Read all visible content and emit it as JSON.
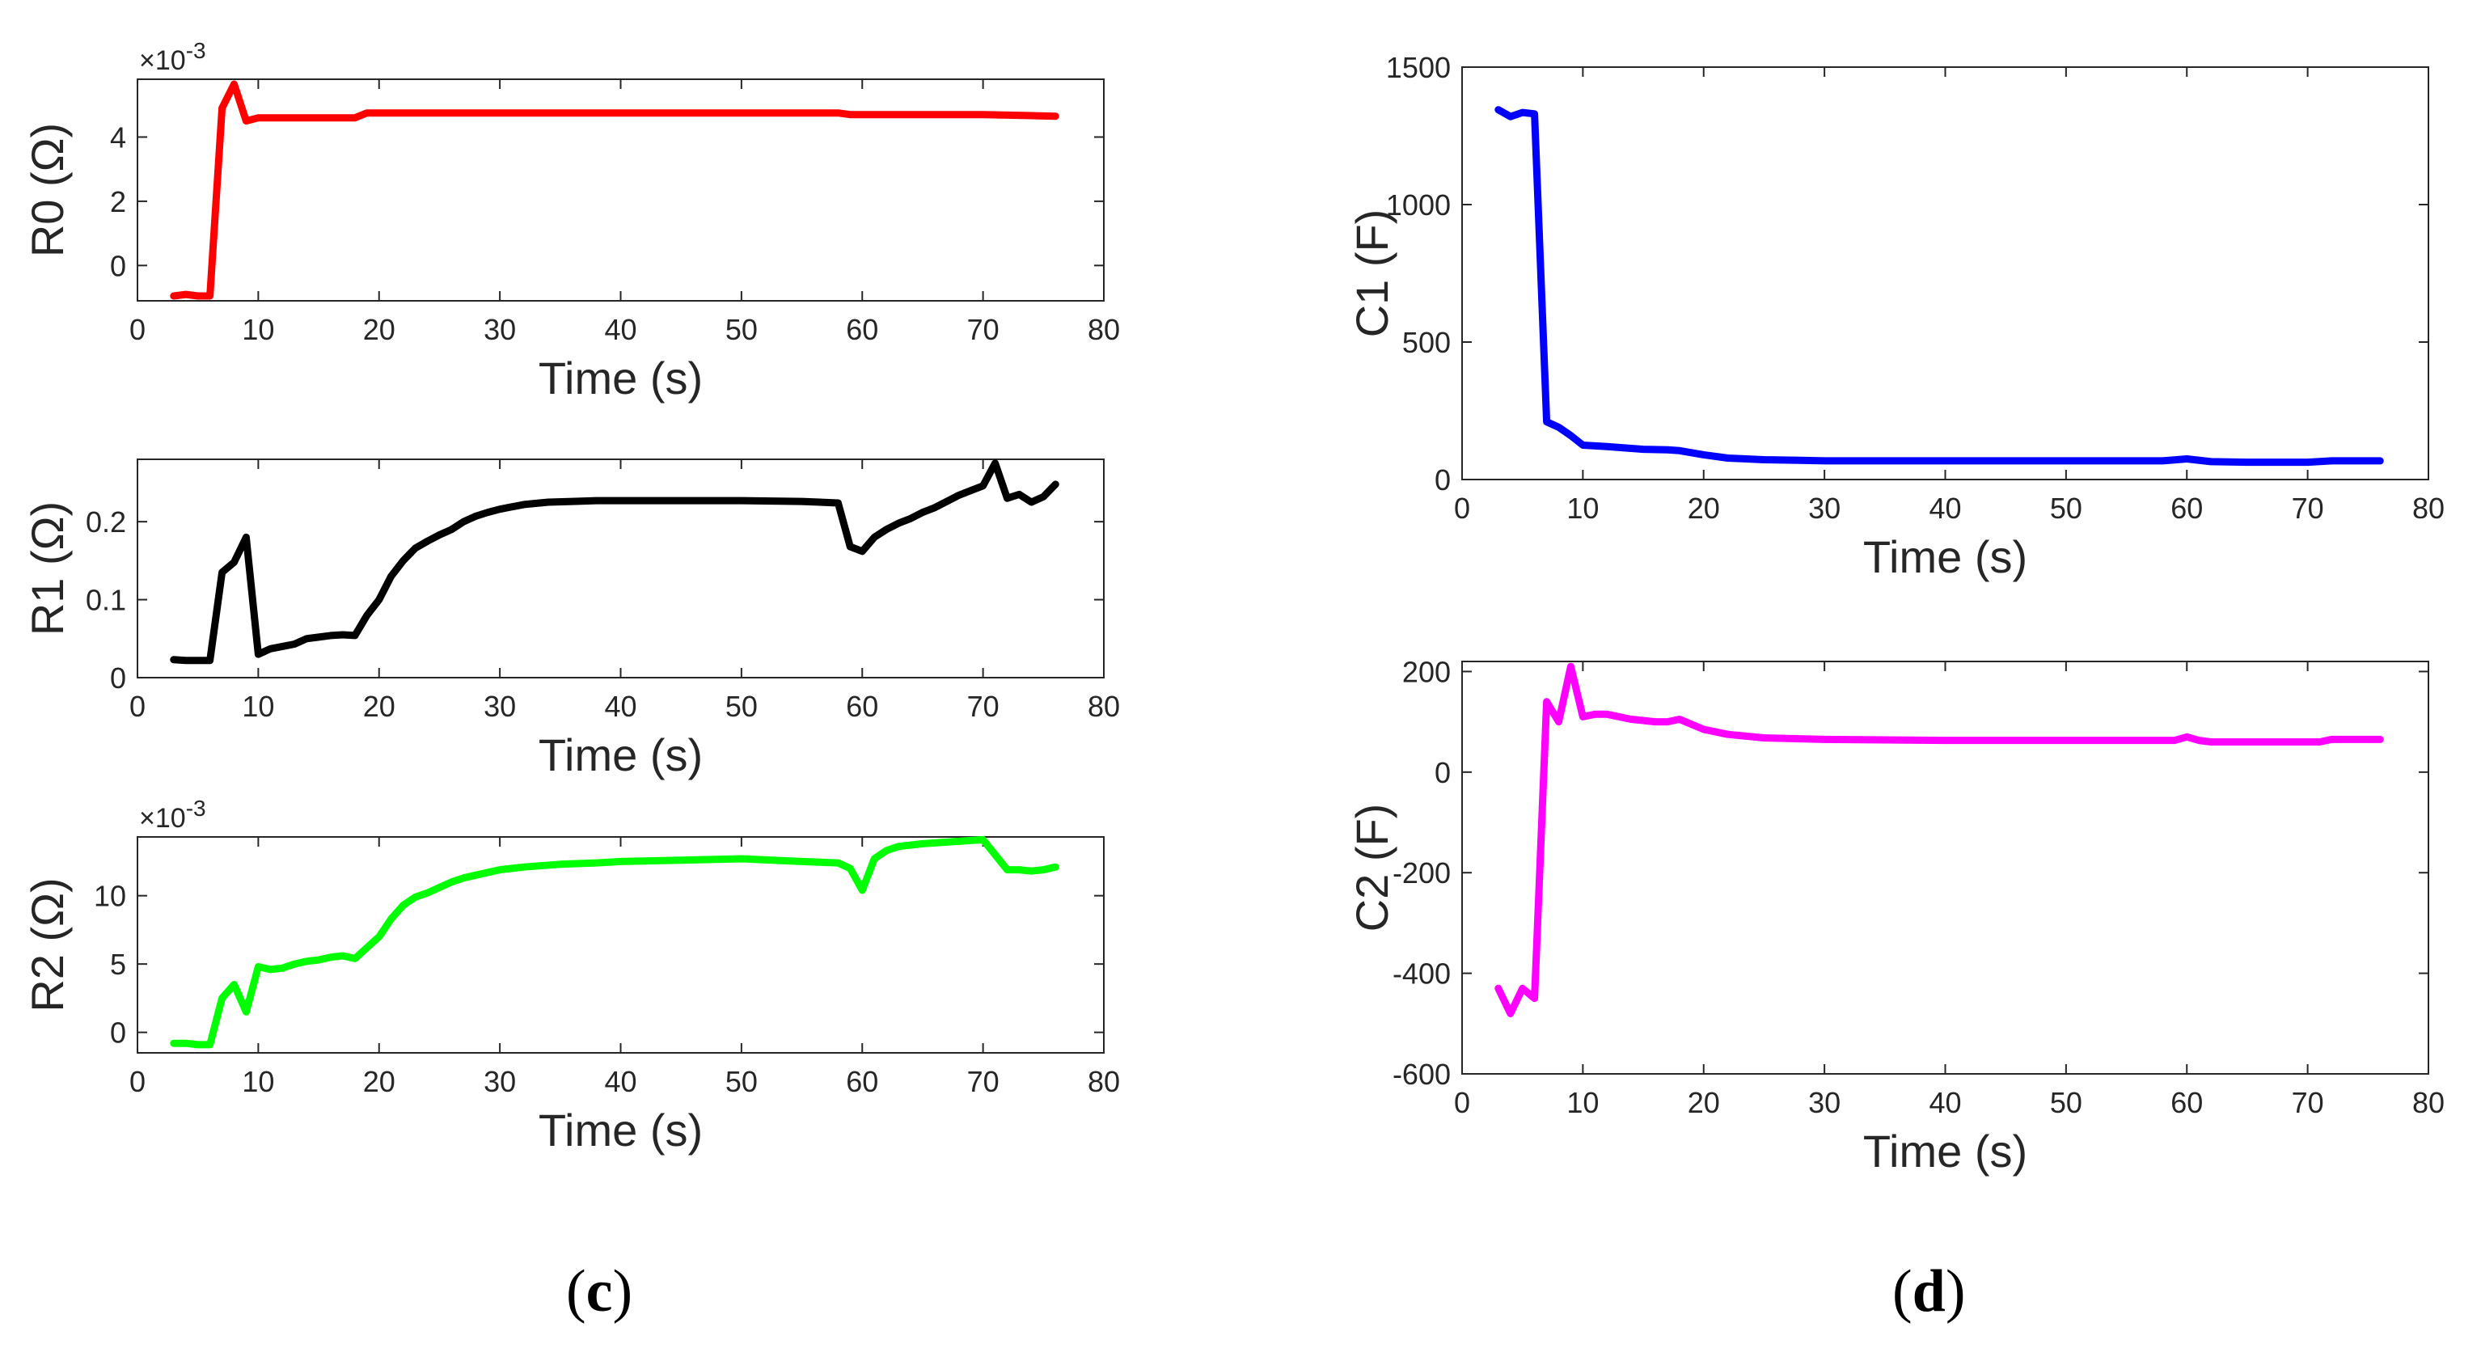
{
  "panel_labels": {
    "c": "c",
    "d": "d"
  },
  "chart_data": [
    {
      "type": "line",
      "id": "r0",
      "ylabel": "R0 (Ω)",
      "xlabel": "Time (s)",
      "exponent_label": "×10",
      "exponent_power": "-3",
      "color": "#ff0000",
      "xlim": [
        0,
        80
      ],
      "ylim": [
        -1.1,
        5.8
      ],
      "xticks": [
        0,
        10,
        20,
        30,
        40,
        50,
        60,
        70,
        80
      ],
      "xtick_labels": [
        "0",
        "10",
        "20",
        "30",
        "40",
        "50",
        "60",
        "70",
        "80"
      ],
      "yticks": [
        0,
        2,
        4
      ],
      "ytick_labels": [
        "0",
        "2",
        "4"
      ],
      "series": [
        {
          "name": "R0",
          "x": [
            3,
            4,
            5,
            6,
            7,
            8,
            9,
            10,
            12,
            14,
            16,
            18,
            19,
            20,
            25,
            30,
            40,
            50,
            58,
            59,
            60,
            65,
            70,
            76
          ],
          "y": [
            -0.95,
            -0.9,
            -0.95,
            -0.95,
            4.9,
            5.65,
            4.5,
            4.6,
            4.6,
            4.6,
            4.6,
            4.6,
            4.75,
            4.75,
            4.75,
            4.75,
            4.75,
            4.75,
            4.75,
            4.7,
            4.7,
            4.7,
            4.7,
            4.65
          ]
        }
      ]
    },
    {
      "type": "line",
      "id": "r1",
      "ylabel": "R1 (Ω)",
      "xlabel": "Time (s)",
      "color": "#000000",
      "xlim": [
        0,
        80
      ],
      "ylim": [
        0,
        0.28
      ],
      "xticks": [
        0,
        10,
        20,
        30,
        40,
        50,
        60,
        70,
        80
      ],
      "xtick_labels": [
        "0",
        "10",
        "20",
        "30",
        "40",
        "50",
        "60",
        "70",
        "80"
      ],
      "yticks": [
        0,
        0.1,
        0.2
      ],
      "ytick_labels": [
        "0",
        "0.1",
        "0.2"
      ],
      "series": [
        {
          "name": "R1",
          "x": [
            3,
            4,
            5,
            6,
            7,
            8,
            9,
            10,
            11,
            12,
            13,
            14,
            15,
            16,
            17,
            18,
            19,
            20,
            21,
            22,
            23,
            24,
            25,
            26,
            27,
            28,
            29,
            30,
            32,
            34,
            36,
            38,
            40,
            45,
            50,
            55,
            58,
            59,
            60,
            61,
            62,
            63,
            64,
            65,
            66,
            67,
            68,
            69,
            70,
            71,
            72,
            73,
            74,
            75,
            76
          ],
          "y": [
            0.023,
            0.022,
            0.022,
            0.022,
            0.135,
            0.148,
            0.18,
            0.03,
            0.037,
            0.04,
            0.043,
            0.05,
            0.052,
            0.054,
            0.055,
            0.054,
            0.08,
            0.1,
            0.13,
            0.15,
            0.166,
            0.175,
            0.183,
            0.19,
            0.2,
            0.207,
            0.212,
            0.216,
            0.222,
            0.225,
            0.226,
            0.227,
            0.227,
            0.227,
            0.227,
            0.226,
            0.224,
            0.168,
            0.162,
            0.18,
            0.19,
            0.198,
            0.204,
            0.212,
            0.218,
            0.226,
            0.234,
            0.24,
            0.246,
            0.275,
            0.23,
            0.235,
            0.225,
            0.232,
            0.248
          ]
        }
      ]
    },
    {
      "type": "line",
      "id": "r2",
      "ylabel": "R2 (Ω)",
      "xlabel": "Time (s)",
      "exponent_label": "×10",
      "exponent_power": "-3",
      "color": "#00ff00",
      "xlim": [
        0,
        80
      ],
      "ylim": [
        -1.5,
        14.3
      ],
      "xticks": [
        0,
        10,
        20,
        30,
        40,
        50,
        60,
        70,
        80
      ],
      "xtick_labels": [
        "0",
        "10",
        "20",
        "30",
        "40",
        "50",
        "60",
        "70",
        "80"
      ],
      "yticks": [
        0,
        5,
        10
      ],
      "ytick_labels": [
        "0",
        "5",
        "10"
      ],
      "series": [
        {
          "name": "R2",
          "x": [
            3,
            4,
            5,
            6,
            7,
            8,
            9,
            10,
            11,
            12,
            13,
            14,
            15,
            16,
            17,
            18,
            19,
            20,
            21,
            22,
            23,
            24,
            25,
            26,
            27,
            28,
            30,
            32,
            35,
            38,
            40,
            45,
            50,
            55,
            58,
            59,
            60,
            61,
            62,
            63,
            65,
            70,
            71,
            72,
            73,
            74,
            75,
            76
          ],
          "y": [
            -0.8,
            -0.8,
            -0.9,
            -0.9,
            2.5,
            3.5,
            1.5,
            4.8,
            4.6,
            4.7,
            5.0,
            5.2,
            5.3,
            5.5,
            5.6,
            5.4,
            6.2,
            7.0,
            8.3,
            9.3,
            9.9,
            10.2,
            10.6,
            11.0,
            11.3,
            11.5,
            11.9,
            12.1,
            12.3,
            12.4,
            12.5,
            12.6,
            12.7,
            12.5,
            12.4,
            12.0,
            10.4,
            12.7,
            13.3,
            13.6,
            13.8,
            14.1,
            13.0,
            11.9,
            11.9,
            11.8,
            11.9,
            12.1
          ]
        }
      ]
    },
    {
      "type": "line",
      "id": "c1",
      "ylabel": "C1 (F)",
      "xlabel": "Time (s)",
      "color": "#0000ff",
      "xlim": [
        0,
        80
      ],
      "ylim": [
        0,
        1500
      ],
      "xticks": [
        0,
        10,
        20,
        30,
        40,
        50,
        60,
        70,
        80
      ],
      "xtick_labels": [
        "0",
        "10",
        "20",
        "30",
        "40",
        "50",
        "60",
        "70",
        "80"
      ],
      "yticks": [
        0,
        500,
        1000,
        1500
      ],
      "ytick_labels": [
        "0",
        "500",
        "1000",
        "1500"
      ],
      "series": [
        {
          "name": "C1",
          "x": [
            3,
            4,
            5,
            6,
            7,
            8,
            9,
            10,
            12,
            15,
            17,
            18,
            20,
            22,
            25,
            28,
            30,
            40,
            50,
            58,
            60,
            62,
            65,
            70,
            72,
            76
          ],
          "y": [
            1345,
            1320,
            1335,
            1330,
            210,
            190,
            160,
            125,
            120,
            110,
            108,
            105,
            90,
            78,
            72,
            70,
            68,
            68,
            68,
            68,
            75,
            65,
            63,
            63,
            68,
            68
          ]
        }
      ]
    },
    {
      "type": "line",
      "id": "c2",
      "ylabel": "C2 (F)",
      "xlabel": "Time (s)",
      "color": "#ff00ff",
      "xlim": [
        0,
        80
      ],
      "ylim": [
        -600,
        220
      ],
      "xticks": [
        0,
        10,
        20,
        30,
        40,
        50,
        60,
        70,
        80
      ],
      "xtick_labels": [
        "0",
        "10",
        "20",
        "30",
        "40",
        "50",
        "60",
        "70",
        "80"
      ],
      "yticks": [
        -600,
        -400,
        -200,
        0,
        200
      ],
      "ytick_labels": [
        "-600",
        "-400",
        "-200",
        "0",
        "200"
      ],
      "series": [
        {
          "name": "C2",
          "x": [
            3,
            4,
            5,
            6,
            7,
            8,
            9,
            10,
            11,
            12,
            14,
            16,
            17,
            18,
            20,
            22,
            25,
            30,
            40,
            50,
            59,
            60,
            61,
            62,
            65,
            70,
            71,
            72,
            76
          ],
          "y": [
            -430,
            -480,
            -430,
            -450,
            140,
            100,
            210,
            110,
            115,
            115,
            105,
            100,
            100,
            105,
            85,
            75,
            68,
            65,
            63,
            63,
            63,
            70,
            63,
            60,
            60,
            60,
            60,
            65,
            65
          ]
        }
      ]
    }
  ]
}
